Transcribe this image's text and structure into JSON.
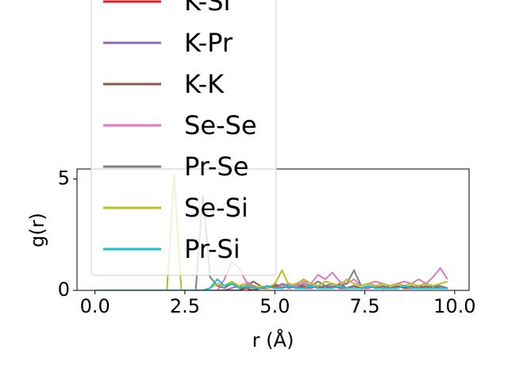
{
  "chart_data": {
    "type": "line",
    "x_label": "r (Å)",
    "y_label": "g(r)",
    "x": [
      0,
      0.2,
      0.4,
      0.6,
      0.8,
      1.0,
      1.2,
      1.4,
      1.6,
      1.8,
      2.0,
      2.2,
      2.4,
      2.6,
      2.8,
      3.0,
      3.2,
      3.4,
      3.6,
      3.8,
      4.0,
      4.2,
      4.4,
      4.6,
      4.8,
      5.0,
      5.2,
      5.4,
      5.6,
      5.8,
      6.0,
      6.2,
      6.4,
      6.6,
      6.8,
      7.0,
      7.2,
      7.4,
      7.6,
      7.8,
      8.0,
      8.2,
      8.4,
      8.6,
      8.8,
      9.0,
      9.2,
      9.4,
      9.6,
      9.8
    ],
    "series": [
      {
        "name": "K-Si",
        "color": "#d62728",
        "values": [
          0,
          0,
          0,
          0,
          0,
          0,
          0,
          0,
          0,
          0,
          0,
          0,
          0,
          0,
          0,
          0,
          0,
          0,
          0,
          0,
          0,
          0.1,
          0,
          0.1,
          0.1,
          0.2,
          0.1,
          0.2,
          0.1,
          0.2,
          0.1,
          0.2,
          0.1,
          0.2,
          0.1,
          0.1,
          0.2,
          0.1,
          0.1,
          0.2,
          0.1,
          0.1,
          0.2,
          0.1,
          0.1,
          0.2,
          0.1,
          0.1,
          0.1,
          0.1
        ]
      },
      {
        "name": "K-Pr",
        "color": "#9467bd",
        "values": [
          0,
          0,
          0,
          0,
          0,
          0,
          0,
          0,
          0,
          0,
          0,
          0,
          0,
          0,
          0,
          0,
          0,
          0,
          0,
          0.1,
          0.2,
          0.3,
          0.2,
          0.1,
          0.2,
          0.1,
          0.2,
          0.1,
          0.2,
          0.1,
          0.1,
          0.2,
          0.1,
          0.2,
          0.1,
          0.1,
          0.2,
          0.1,
          0.1,
          0.2,
          0.1,
          0.1,
          0.1,
          0.2,
          0.1,
          0.1,
          0.1,
          0.2,
          0.1,
          0.1
        ]
      },
      {
        "name": "K-K",
        "color": "#8c564b",
        "values": [
          0,
          0,
          0,
          0,
          0,
          0,
          0,
          0,
          0,
          0,
          0,
          0,
          0,
          0,
          0,
          0,
          0,
          0,
          0,
          0,
          0,
          0.2,
          0.4,
          0.2,
          0.1,
          0.3,
          0.1,
          0.2,
          0.3,
          0.1,
          0.2,
          0.1,
          0.2,
          0.1,
          0.3,
          0.1,
          0.2,
          0.1,
          0.2,
          0.1,
          0.2,
          0.1,
          0.2,
          0.1,
          0.2,
          0.1,
          0.2,
          0.1,
          0.2,
          0.1
        ]
      },
      {
        "name": "Se-Se",
        "color": "#e377c2",
        "values": [
          0,
          0,
          0,
          0,
          0,
          0,
          0,
          0,
          0,
          0,
          0,
          0,
          0,
          0,
          0,
          0,
          0,
          0,
          0.5,
          1.3,
          1.0,
          0.4,
          0.2,
          0.1,
          0.2,
          0.1,
          0.2,
          0.3,
          0.2,
          0.4,
          0.3,
          0.7,
          0.5,
          0.8,
          0.4,
          0.3,
          0.5,
          0.2,
          0.3,
          0.4,
          0.3,
          0.2,
          0.3,
          0.4,
          0.3,
          0.5,
          0.3,
          0.6,
          1.0,
          0.5
        ]
      },
      {
        "name": "Pr-Se",
        "color": "#7f7f7f",
        "values": [
          0,
          0,
          0,
          0,
          0,
          0,
          0,
          0,
          0,
          0,
          0,
          0,
          0,
          0,
          0,
          4.3,
          0.6,
          0.2,
          0.1,
          0.3,
          0.2,
          0.1,
          0.2,
          0.1,
          0.2,
          0.1,
          0.3,
          0.2,
          0.1,
          0.3,
          0.2,
          0.4,
          0.2,
          0.3,
          0.2,
          0.3,
          0.9,
          0.2,
          0.3,
          0.2,
          0.1,
          0.2,
          0.3,
          0.2,
          0.1,
          0.2,
          0.3,
          0.2,
          0.2,
          0.1
        ]
      },
      {
        "name": "Se-Si",
        "color": "#bcbd22",
        "values": [
          0,
          0,
          0,
          0,
          0,
          0,
          0,
          0,
          0,
          0,
          0,
          5.2,
          0,
          0,
          0,
          0,
          0.1,
          0.3,
          0.2,
          0.4,
          0.2,
          0.3,
          0.1,
          0.2,
          0.1,
          0.3,
          0.9,
          0.2,
          0.3,
          0.5,
          0.3,
          0.2,
          0.4,
          0.3,
          0.2,
          0.5,
          0.3,
          0.2,
          0.3,
          0.2,
          0.3,
          0.2,
          0.3,
          0.2,
          0.3,
          0.2,
          0.3,
          0.2,
          0.3,
          0.4
        ]
      },
      {
        "name": "Pr-Si",
        "color": "#17becf",
        "values": [
          0,
          0,
          0,
          0,
          0,
          0,
          0,
          0,
          0,
          0,
          0,
          0,
          0,
          0,
          0,
          0,
          0.1,
          0.5,
          0.2,
          0.3,
          0.1,
          0.2,
          0.1,
          0.1,
          0.2,
          0.1,
          0.1,
          0.2,
          0.1,
          0.1,
          0.2,
          0.1,
          0.1,
          0.1,
          0.2,
          0.1,
          0.1,
          0.1,
          0.2,
          0.1,
          0.1,
          0.1,
          0.1,
          0.2,
          0.1,
          0.1,
          0.1,
          0.1,
          0.1,
          0.1
        ]
      }
    ],
    "xlim": [
      -0.5,
      10.4
    ],
    "ylim": [
      0,
      5.45
    ],
    "xticks": [
      {
        "value": 0,
        "label": "0.0"
      },
      {
        "value": 2.5,
        "label": "2.5"
      },
      {
        "value": 5,
        "label": "5.0"
      },
      {
        "value": 7.5,
        "label": "7.5"
      },
      {
        "value": 10,
        "label": "10.0"
      }
    ],
    "yticks": [
      0,
      5
    ]
  }
}
